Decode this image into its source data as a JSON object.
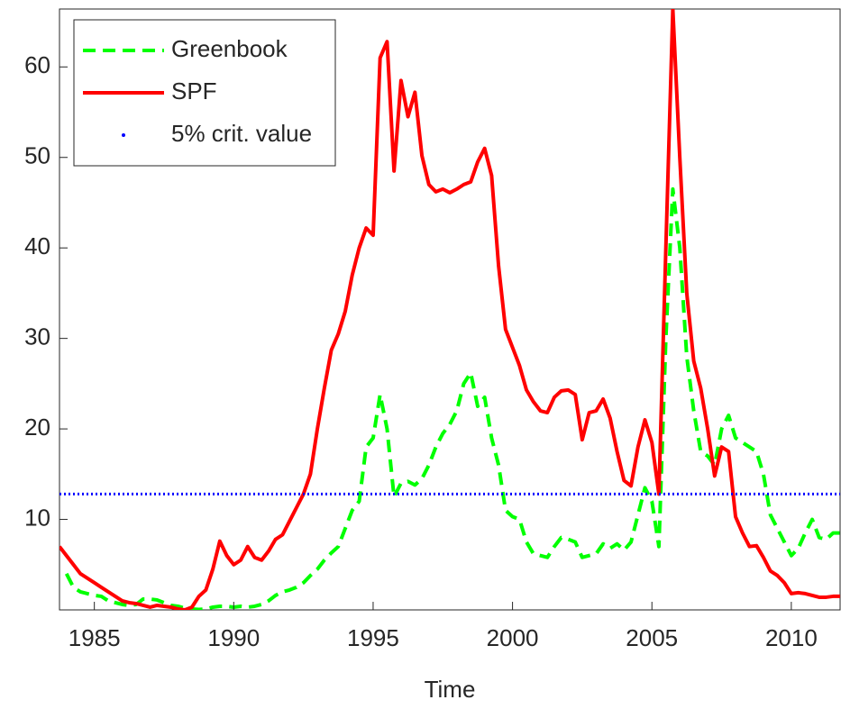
{
  "chart_data": {
    "type": "line",
    "xlabel": "Time",
    "x": [
      1983.75,
      1984,
      1984.25,
      1984.5,
      1984.75,
      1985,
      1985.25,
      1985.5,
      1985.75,
      1986,
      1986.25,
      1986.5,
      1986.75,
      1987,
      1987.25,
      1987.5,
      1987.75,
      1988,
      1988.25,
      1988.5,
      1988.75,
      1989,
      1989.25,
      1989.5,
      1989.75,
      1990,
      1990.25,
      1990.5,
      1990.75,
      1991,
      1991.25,
      1991.5,
      1991.75,
      1992,
      1992.25,
      1992.5,
      1992.75,
      1993,
      1993.25,
      1993.5,
      1993.75,
      1994,
      1994.25,
      1994.5,
      1994.75,
      1995,
      1995.25,
      1995.5,
      1995.75,
      1996,
      1996.25,
      1996.5,
      1996.75,
      1997,
      1997.25,
      1997.5,
      1997.75,
      1998,
      1998.25,
      1998.5,
      1998.75,
      1999,
      1999.25,
      1999.5,
      1999.75,
      2000,
      2000.25,
      2000.5,
      2000.75,
      2001,
      2001.25,
      2001.5,
      2001.75,
      2002,
      2002.25,
      2002.5,
      2002.75,
      2003,
      2003.25,
      2003.5,
      2003.75,
      2004,
      2004.25,
      2004.5,
      2004.75,
      2005,
      2005.25,
      2005.5,
      2005.75,
      2006,
      2006.25,
      2006.5,
      2006.75,
      2007,
      2007.25,
      2007.5,
      2007.75,
      2008,
      2008.25,
      2008.5,
      2008.75,
      2009,
      2009.25,
      2009.5,
      2009.75,
      2010,
      2010.25,
      2010.5,
      2010.75,
      2011,
      2011.25,
      2011.5,
      2011.75
    ],
    "series": [
      {
        "name": "Greenbook",
        "color": "#00ff00",
        "style": "dashed",
        "values": [
          null,
          4,
          2.5,
          2,
          1.8,
          1.6,
          1.5,
          1,
          0.8,
          0.6,
          0.5,
          0.6,
          1.2,
          1.2,
          1.1,
          0.8,
          0.5,
          0.4,
          0.2,
          0.1,
          0.05,
          0.1,
          0.3,
          0.4,
          0.4,
          0.3,
          0.4,
          0.3,
          0.4,
          0.6,
          1,
          1.6,
          2,
          2.2,
          2.5,
          3,
          3.8,
          4.5,
          5.5,
          6.3,
          7,
          9,
          11,
          12,
          18,
          19,
          23.8,
          20,
          12.5,
          14,
          14.2,
          13.8,
          14.5,
          16,
          18,
          19.5,
          20.5,
          22,
          25,
          26.2,
          22.5,
          23.5,
          19,
          16,
          11,
          10.3,
          10,
          7.5,
          6.2,
          6,
          5.8,
          7,
          8,
          7.8,
          7.5,
          5.8,
          6,
          6.2,
          7.3,
          6.8,
          7.3,
          6.6,
          7.5,
          10.5,
          13.5,
          12,
          7,
          30,
          46.5,
          40,
          28,
          22,
          17.5,
          17,
          16,
          20,
          21.5,
          19,
          18.5,
          18,
          17.5,
          15,
          10.5,
          9,
          7.5,
          6,
          6.8,
          8.5,
          10,
          8,
          7.8,
          8.5,
          8.5
        ]
      },
      {
        "name": "SPF",
        "color": "#ff0000",
        "style": "solid",
        "values": [
          7,
          6,
          5,
          4,
          3.5,
          3,
          2.5,
          2,
          1.5,
          1,
          0.8,
          0.7,
          0.5,
          0.3,
          0.5,
          0.4,
          0.3,
          0.1,
          0,
          0.3,
          1.5,
          2.2,
          4.5,
          7.6,
          6,
          5,
          5.5,
          7,
          5.8,
          5.5,
          6.5,
          7.8,
          8.3,
          9.8,
          11.3,
          12.8,
          15,
          20,
          24.5,
          28.7,
          30.5,
          33,
          37,
          40,
          42.2,
          41.4,
          61,
          62.8,
          48.5,
          58.5,
          54.5,
          57.2,
          50.2,
          47,
          46.2,
          46.5,
          46.1,
          46.5,
          47,
          47.3,
          49.5,
          51,
          48,
          38,
          31,
          29,
          27,
          24.3,
          23,
          22,
          21.8,
          23.5,
          24.2,
          24.3,
          23.8,
          18.8,
          21.8,
          22,
          23.3,
          21.2,
          17.5,
          14.3,
          13.7,
          18,
          21,
          18.5,
          12.8,
          40,
          66.4,
          50,
          35,
          27.5,
          24.5,
          20,
          14.8,
          18,
          17.5,
          10.3,
          8.5,
          7,
          7.1,
          5.8,
          4.3,
          3.8,
          3,
          1.8,
          1.9,
          1.8,
          1.6,
          1.4,
          1.4,
          1.5,
          1.5
        ]
      },
      {
        "name": "5% crit. value",
        "color": "#0000ff",
        "style": "dotted",
        "value": 12.8
      }
    ],
    "xlim": [
      1983.75,
      2011.75
    ],
    "ylim": [
      0,
      66.4
    ],
    "xticks": [
      1985,
      1990,
      1995,
      2000,
      2005,
      2010
    ],
    "yticks": [
      10,
      20,
      30,
      40,
      50,
      60
    ],
    "grid": false,
    "legend": "upper-left"
  }
}
